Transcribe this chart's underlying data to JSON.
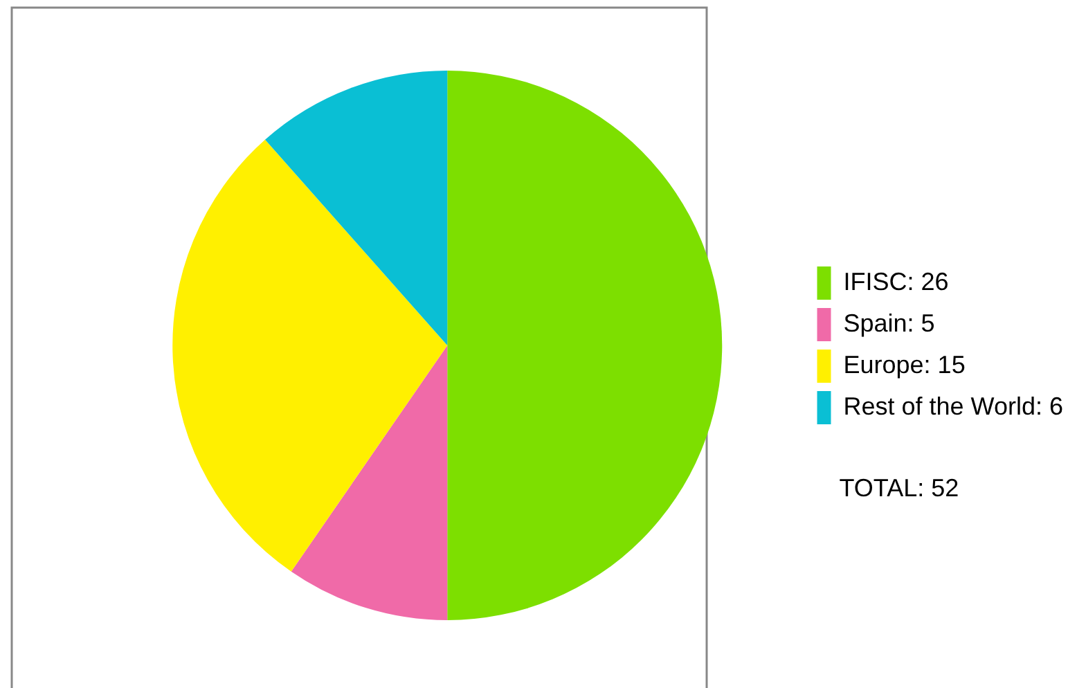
{
  "chart_data": {
    "type": "pie",
    "categories": [
      "IFISC: 26",
      "Spain: 5",
      "Europe: 15",
      "Rest of the World: 6"
    ],
    "values": [
      26,
      5,
      15,
      6
    ],
    "colors": [
      "#7ddf00",
      "#f06aa8",
      "#fff000",
      "#0abfd4"
    ],
    "legend": "right",
    "annotations": [
      "TOTAL: 52"
    ]
  }
}
